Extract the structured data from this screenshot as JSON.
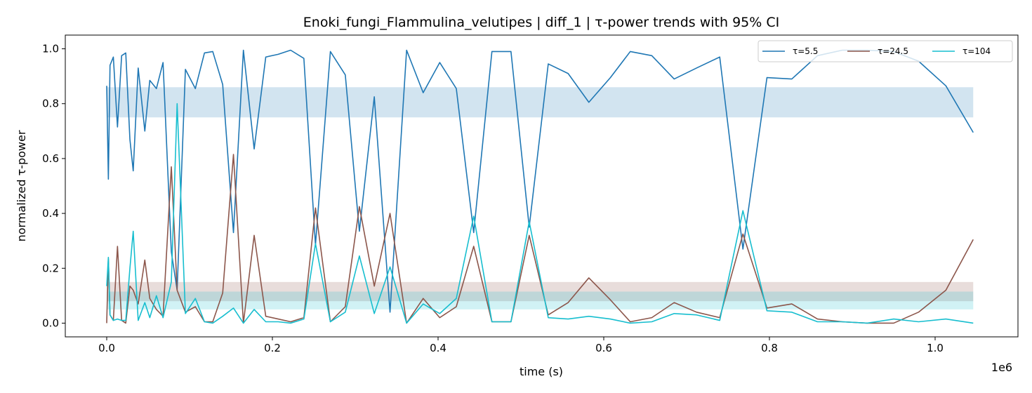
{
  "chart_data": {
    "type": "line",
    "title": "Enoki_fungi_Flammulina_velutipes | diff_1 | τ-power trends with 95% CI",
    "xlabel": "time (s)",
    "ylabel": "normalized τ-power",
    "x_offset_label": "1e6",
    "xlim": [
      -0.05,
      1.1
    ],
    "ylim": [
      -0.05,
      1.05
    ],
    "x_ticks": [
      0.0,
      0.2,
      0.4,
      0.6,
      0.8,
      1.0
    ],
    "x_tick_labels": [
      "0.0",
      "0.2",
      "0.4",
      "0.6",
      "0.8",
      "1.0"
    ],
    "y_ticks": [
      0.0,
      0.2,
      0.4,
      0.6,
      0.8,
      1.0
    ],
    "y_tick_labels": [
      "0.0",
      "0.2",
      "0.4",
      "0.6",
      "0.8",
      "1.0"
    ],
    "grid": false,
    "legend_position": "top-right",
    "series": [
      {
        "name": "τ=5.5",
        "color": "#1f77b4",
        "ci": [
          0.75,
          0.86
        ],
        "points": [
          [
            0.0,
            0.865
          ],
          [
            0.002,
            0.525
          ],
          [
            0.004,
            0.94
          ],
          [
            0.008,
            0.97
          ],
          [
            0.013,
            0.715
          ],
          [
            0.018,
            0.975
          ],
          [
            0.023,
            0.985
          ],
          [
            0.028,
            0.67
          ],
          [
            0.032,
            0.555
          ],
          [
            0.038,
            0.93
          ],
          [
            0.046,
            0.7
          ],
          [
            0.052,
            0.885
          ],
          [
            0.06,
            0.855
          ],
          [
            0.068,
            0.95
          ],
          [
            0.078,
            0.26
          ],
          [
            0.085,
            0.12
          ],
          [
            0.095,
            0.925
          ],
          [
            0.107,
            0.855
          ],
          [
            0.118,
            0.985
          ],
          [
            0.128,
            0.99
          ],
          [
            0.14,
            0.87
          ],
          [
            0.153,
            0.33
          ],
          [
            0.165,
            0.995
          ],
          [
            0.178,
            0.635
          ],
          [
            0.192,
            0.97
          ],
          [
            0.207,
            0.98
          ],
          [
            0.222,
            0.995
          ],
          [
            0.238,
            0.965
          ],
          [
            0.252,
            0.285
          ],
          [
            0.27,
            0.99
          ],
          [
            0.288,
            0.905
          ],
          [
            0.305,
            0.335
          ],
          [
            0.323,
            0.825
          ],
          [
            0.342,
            0.04
          ],
          [
            0.362,
            0.995
          ],
          [
            0.382,
            0.84
          ],
          [
            0.402,
            0.95
          ],
          [
            0.422,
            0.855
          ],
          [
            0.443,
            0.33
          ],
          [
            0.465,
            0.99
          ],
          [
            0.488,
            0.99
          ],
          [
            0.51,
            0.35
          ],
          [
            0.533,
            0.945
          ],
          [
            0.557,
            0.91
          ],
          [
            0.582,
            0.805
          ],
          [
            0.608,
            0.895
          ],
          [
            0.632,
            0.99
          ],
          [
            0.658,
            0.975
          ],
          [
            0.685,
            0.89
          ],
          [
            0.712,
            0.93
          ],
          [
            0.74,
            0.97
          ],
          [
            0.768,
            0.27
          ],
          [
            0.797,
            0.895
          ],
          [
            0.827,
            0.89
          ],
          [
            0.858,
            0.975
          ],
          [
            0.888,
            0.995
          ],
          [
            0.918,
            0.995
          ],
          [
            0.95,
            0.99
          ],
          [
            0.98,
            0.955
          ],
          [
            1.013,
            0.865
          ],
          [
            1.046,
            0.695
          ]
        ]
      },
      {
        "name": "τ=24.5",
        "color": "#8c564b",
        "ci": [
          0.08,
          0.15
        ],
        "points": [
          [
            0.0,
            0.0
          ],
          [
            0.002,
            0.235
          ],
          [
            0.004,
            0.03
          ],
          [
            0.008,
            0.01
          ],
          [
            0.013,
            0.28
          ],
          [
            0.018,
            0.01
          ],
          [
            0.023,
            0.0
          ],
          [
            0.028,
            0.135
          ],
          [
            0.032,
            0.12
          ],
          [
            0.038,
            0.07
          ],
          [
            0.046,
            0.23
          ],
          [
            0.052,
            0.09
          ],
          [
            0.06,
            0.05
          ],
          [
            0.068,
            0.025
          ],
          [
            0.078,
            0.57
          ],
          [
            0.085,
            0.12
          ],
          [
            0.095,
            0.04
          ],
          [
            0.107,
            0.06
          ],
          [
            0.118,
            0.005
          ],
          [
            0.128,
            0.005
          ],
          [
            0.14,
            0.11
          ],
          [
            0.153,
            0.615
          ],
          [
            0.165,
            0.0
          ],
          [
            0.178,
            0.32
          ],
          [
            0.192,
            0.025
          ],
          [
            0.207,
            0.015
          ],
          [
            0.222,
            0.005
          ],
          [
            0.238,
            0.02
          ],
          [
            0.252,
            0.42
          ],
          [
            0.27,
            0.005
          ],
          [
            0.288,
            0.06
          ],
          [
            0.305,
            0.425
          ],
          [
            0.323,
            0.135
          ],
          [
            0.342,
            0.4
          ],
          [
            0.362,
            0.0
          ],
          [
            0.382,
            0.09
          ],
          [
            0.402,
            0.02
          ],
          [
            0.422,
            0.06
          ],
          [
            0.443,
            0.28
          ],
          [
            0.465,
            0.005
          ],
          [
            0.488,
            0.005
          ],
          [
            0.51,
            0.32
          ],
          [
            0.533,
            0.03
          ],
          [
            0.557,
            0.075
          ],
          [
            0.582,
            0.165
          ],
          [
            0.608,
            0.085
          ],
          [
            0.632,
            0.005
          ],
          [
            0.658,
            0.02
          ],
          [
            0.685,
            0.075
          ],
          [
            0.712,
            0.04
          ],
          [
            0.74,
            0.02
          ],
          [
            0.768,
            0.325
          ],
          [
            0.797,
            0.055
          ],
          [
            0.827,
            0.07
          ],
          [
            0.858,
            0.015
          ],
          [
            0.888,
            0.005
          ],
          [
            0.918,
            0.0
          ],
          [
            0.95,
            0.0
          ],
          [
            0.98,
            0.04
          ],
          [
            1.013,
            0.12
          ],
          [
            1.046,
            0.305
          ]
        ]
      },
      {
        "name": "τ=104",
        "color": "#17becf",
        "ci": [
          0.05,
          0.115
        ],
        "points": [
          [
            0.0,
            0.135
          ],
          [
            0.002,
            0.24
          ],
          [
            0.004,
            0.03
          ],
          [
            0.008,
            0.01
          ],
          [
            0.013,
            0.015
          ],
          [
            0.018,
            0.01
          ],
          [
            0.023,
            0.01
          ],
          [
            0.028,
            0.2
          ],
          [
            0.032,
            0.335
          ],
          [
            0.038,
            0.01
          ],
          [
            0.046,
            0.075
          ],
          [
            0.052,
            0.02
          ],
          [
            0.06,
            0.1
          ],
          [
            0.068,
            0.02
          ],
          [
            0.078,
            0.15
          ],
          [
            0.085,
            0.8
          ],
          [
            0.095,
            0.035
          ],
          [
            0.107,
            0.09
          ],
          [
            0.118,
            0.005
          ],
          [
            0.128,
            0.0
          ],
          [
            0.14,
            0.025
          ],
          [
            0.153,
            0.055
          ],
          [
            0.165,
            0.0
          ],
          [
            0.178,
            0.05
          ],
          [
            0.192,
            0.005
          ],
          [
            0.207,
            0.005
          ],
          [
            0.222,
            0.0
          ],
          [
            0.238,
            0.015
          ],
          [
            0.252,
            0.29
          ],
          [
            0.27,
            0.005
          ],
          [
            0.288,
            0.04
          ],
          [
            0.305,
            0.245
          ],
          [
            0.323,
            0.035
          ],
          [
            0.342,
            0.205
          ],
          [
            0.362,
            0.0
          ],
          [
            0.382,
            0.07
          ],
          [
            0.402,
            0.035
          ],
          [
            0.422,
            0.09
          ],
          [
            0.443,
            0.39
          ],
          [
            0.465,
            0.005
          ],
          [
            0.488,
            0.005
          ],
          [
            0.51,
            0.37
          ],
          [
            0.533,
            0.02
          ],
          [
            0.557,
            0.015
          ],
          [
            0.582,
            0.025
          ],
          [
            0.608,
            0.015
          ],
          [
            0.632,
            0.0
          ],
          [
            0.658,
            0.005
          ],
          [
            0.685,
            0.035
          ],
          [
            0.712,
            0.03
          ],
          [
            0.74,
            0.01
          ],
          [
            0.768,
            0.41
          ],
          [
            0.797,
            0.045
          ],
          [
            0.827,
            0.04
          ],
          [
            0.858,
            0.005
          ],
          [
            0.888,
            0.005
          ],
          [
            0.918,
            0.0
          ],
          [
            0.95,
            0.015
          ],
          [
            0.98,
            0.005
          ],
          [
            1.013,
            0.015
          ],
          [
            1.046,
            0.0
          ]
        ]
      }
    ]
  }
}
